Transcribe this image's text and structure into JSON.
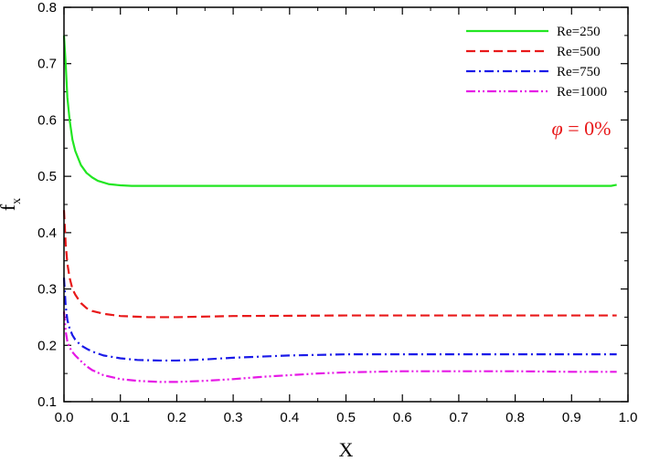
{
  "chart_data": {
    "type": "line",
    "xlabel": "X",
    "ylabel_main": "f",
    "ylabel_sub": "x",
    "xlim": [
      0.0,
      1.0
    ],
    "ylim": [
      0.1,
      0.8
    ],
    "xticks": [
      "0.0",
      "0.1",
      "0.2",
      "0.3",
      "0.4",
      "0.5",
      "0.6",
      "0.7",
      "0.8",
      "0.9",
      "1.0"
    ],
    "yticks": [
      "0.1",
      "0.2",
      "0.3",
      "0.4",
      "0.5",
      "0.6",
      "0.7",
      "0.8"
    ],
    "grid": false,
    "legend_position": "top-right",
    "annotation": {
      "symbol": "φ",
      "text": " = 0%",
      "color": "#e8191a"
    },
    "series": [
      {
        "name": "Re=250",
        "color": "#22e622",
        "dash": "solid",
        "x": [
          0.0,
          0.003,
          0.006,
          0.01,
          0.015,
          0.02,
          0.03,
          0.04,
          0.05,
          0.06,
          0.08,
          0.1,
          0.12,
          0.15,
          0.2,
          0.3,
          0.5,
          0.7,
          0.9,
          0.97,
          0.98
        ],
        "y": [
          0.75,
          0.7,
          0.64,
          0.6,
          0.565,
          0.545,
          0.52,
          0.506,
          0.498,
          0.492,
          0.486,
          0.484,
          0.483,
          0.483,
          0.483,
          0.483,
          0.483,
          0.483,
          0.483,
          0.483,
          0.485
        ]
      },
      {
        "name": "Re=500",
        "color": "#e8191a",
        "dash": "dashed",
        "x": [
          0.0,
          0.003,
          0.006,
          0.01,
          0.015,
          0.02,
          0.03,
          0.04,
          0.05,
          0.07,
          0.1,
          0.15,
          0.2,
          0.3,
          0.5,
          0.7,
          0.9,
          0.98
        ],
        "y": [
          0.44,
          0.38,
          0.345,
          0.32,
          0.3,
          0.29,
          0.275,
          0.266,
          0.261,
          0.256,
          0.252,
          0.25,
          0.25,
          0.252,
          0.253,
          0.253,
          0.253,
          0.253
        ]
      },
      {
        "name": "Re=750",
        "color": "#1a1ae8",
        "dash": "dashdot",
        "x": [
          0.0,
          0.003,
          0.006,
          0.01,
          0.015,
          0.02,
          0.03,
          0.04,
          0.05,
          0.07,
          0.1,
          0.13,
          0.17,
          0.2,
          0.25,
          0.3,
          0.4,
          0.5,
          0.6,
          0.7,
          0.9,
          0.98
        ],
        "y": [
          0.32,
          0.27,
          0.245,
          0.23,
          0.218,
          0.21,
          0.2,
          0.194,
          0.189,
          0.182,
          0.177,
          0.174,
          0.173,
          0.173,
          0.175,
          0.178,
          0.182,
          0.184,
          0.184,
          0.184,
          0.184,
          0.184
        ]
      },
      {
        "name": "Re=1000",
        "color": "#e619e6",
        "dash": "dashdotdot",
        "x": [
          0.0,
          0.003,
          0.006,
          0.01,
          0.015,
          0.02,
          0.03,
          0.04,
          0.05,
          0.07,
          0.1,
          0.13,
          0.17,
          0.2,
          0.25,
          0.3,
          0.35,
          0.4,
          0.45,
          0.5,
          0.55,
          0.6,
          0.7,
          0.8,
          0.9,
          0.98
        ],
        "y": [
          0.26,
          0.225,
          0.207,
          0.196,
          0.188,
          0.182,
          0.172,
          0.163,
          0.156,
          0.147,
          0.14,
          0.137,
          0.135,
          0.135,
          0.137,
          0.14,
          0.144,
          0.147,
          0.15,
          0.152,
          0.153,
          0.154,
          0.154,
          0.154,
          0.153,
          0.153
        ]
      }
    ]
  }
}
